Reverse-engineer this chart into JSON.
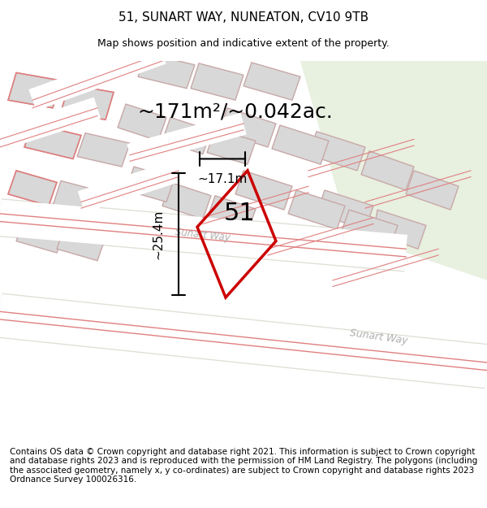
{
  "title": "51, SUNART WAY, NUNEATON, CV10 9TB",
  "subtitle": "Map shows position and indicative extent of the property.",
  "area_label": "~171m²/~0.042ac.",
  "property_number": "51",
  "dim_width": "~17.1m",
  "dim_height": "~25.4m",
  "street_label_1": "Sunart Way",
  "street_label_2": "Sunart W...",
  "footer": "Contains OS data © Crown copyright and database right 2021. This information is subject to Crown copyright and database rights 2023 and is reproduced with the permission of HM Land Registry. The polygons (including the associated geometry, namely x, y co-ordinates) are subject to Crown copyright and database rights 2023 Ordnance Survey 100026316.",
  "bg_color": "#f5f5f0",
  "map_bg": "#f0f0eb",
  "road_color": "#ffffff",
  "building_fill": "#d8d8d8",
  "building_edge": "#c8a8a8",
  "highlight_edge": "#e8b8b8",
  "property_color": "#cc0000",
  "green_area": "#e8f0e0",
  "road_label_color": "#b0b0b0",
  "title_fontsize": 11,
  "subtitle_fontsize": 9,
  "area_fontsize": 18,
  "number_fontsize": 22,
  "dim_fontsize": 11,
  "footer_fontsize": 7.5
}
